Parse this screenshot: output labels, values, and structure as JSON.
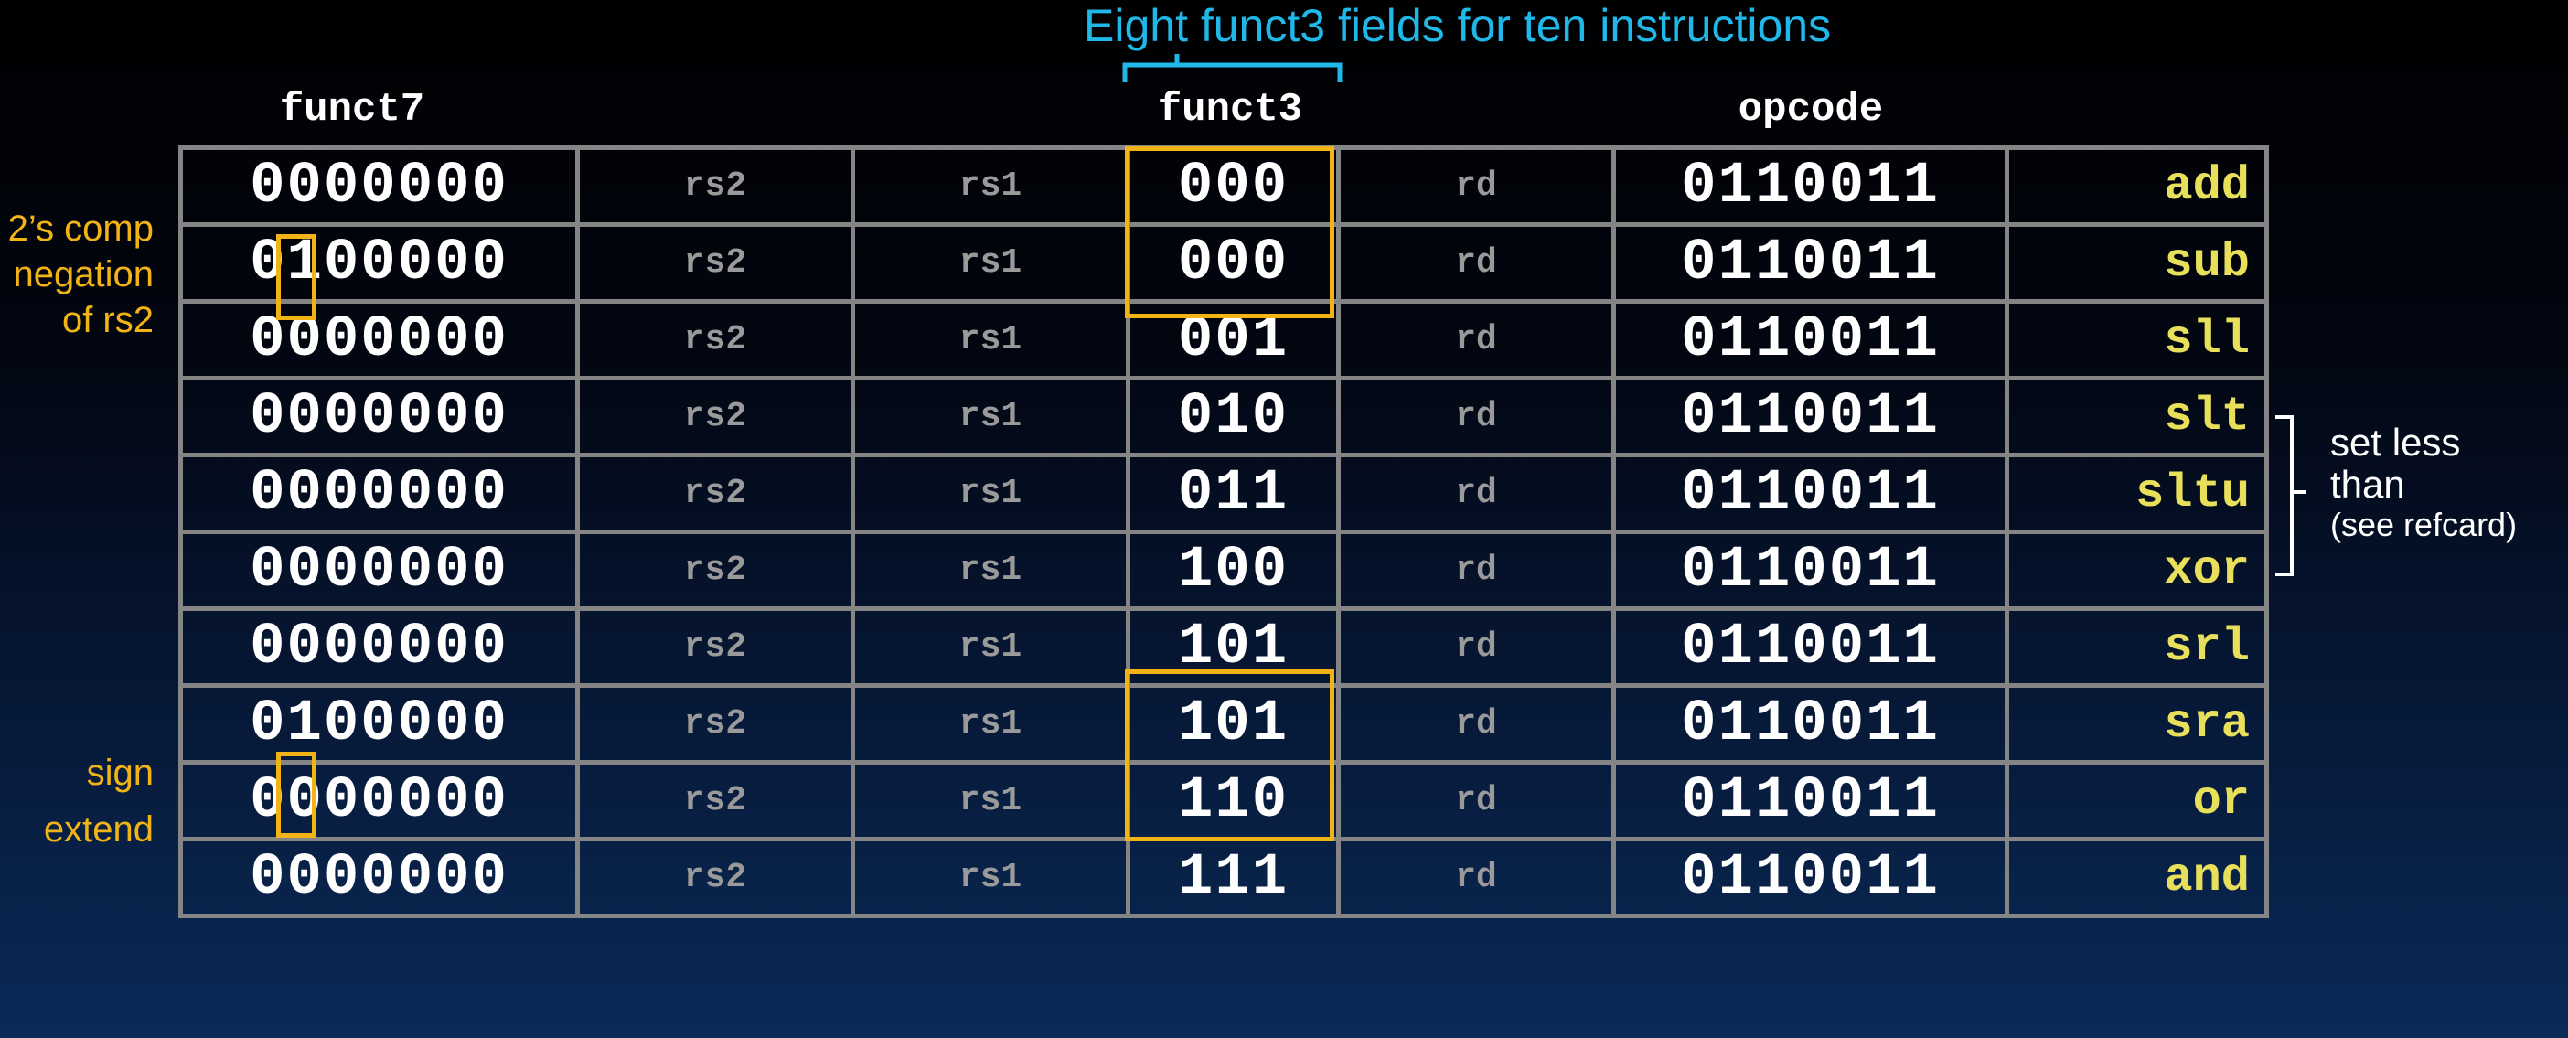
{
  "caption": "Eight funct3 fields for ten instructions",
  "headers": {
    "funct7": "funct7",
    "funct3": "funct3",
    "opcode": "opcode"
  },
  "rows": [
    {
      "funct7": "0000000",
      "rs2": "rs2",
      "rs1": "rs1",
      "funct3": "000",
      "rd": "rd",
      "opcode": "0110011",
      "name": "add"
    },
    {
      "funct7": "0100000",
      "rs2": "rs2",
      "rs1": "rs1",
      "funct3": "000",
      "rd": "rd",
      "opcode": "0110011",
      "name": "sub"
    },
    {
      "funct7": "0000000",
      "rs2": "rs2",
      "rs1": "rs1",
      "funct3": "001",
      "rd": "rd",
      "opcode": "0110011",
      "name": "sll"
    },
    {
      "funct7": "0000000",
      "rs2": "rs2",
      "rs1": "rs1",
      "funct3": "010",
      "rd": "rd",
      "opcode": "0110011",
      "name": "slt"
    },
    {
      "funct7": "0000000",
      "rs2": "rs2",
      "rs1": "rs1",
      "funct3": "011",
      "rd": "rd",
      "opcode": "0110011",
      "name": "sltu"
    },
    {
      "funct7": "0000000",
      "rs2": "rs2",
      "rs1": "rs1",
      "funct3": "100",
      "rd": "rd",
      "opcode": "0110011",
      "name": "xor"
    },
    {
      "funct7": "0000000",
      "rs2": "rs2",
      "rs1": "rs1",
      "funct3": "101",
      "rd": "rd",
      "opcode": "0110011",
      "name": "srl"
    },
    {
      "funct7": "0100000",
      "rs2": "rs2",
      "rs1": "rs1",
      "funct3": "101",
      "rd": "rd",
      "opcode": "0110011",
      "name": "sra"
    },
    {
      "funct7": "0000000",
      "rs2": "rs2",
      "rs1": "rs1",
      "funct3": "110",
      "rd": "rd",
      "opcode": "0110011",
      "name": "or"
    },
    {
      "funct7": "0000000",
      "rs2": "rs2",
      "rs1": "rs1",
      "funct3": "111",
      "rd": "rd",
      "opcode": "0110011",
      "name": "and"
    }
  ],
  "notes": {
    "twos_comp": [
      "2’s comp",
      "negation",
      "of rs2"
    ],
    "sign_extend": [
      "sign",
      "extend"
    ],
    "set_less_than": [
      "set less",
      "than",
      "(see refcard)"
    ]
  },
  "colors": {
    "caption": "#1fb8e8",
    "highlight": "#f2b414",
    "instruction_name": "#e8e05a",
    "grid": "#858585",
    "field_label": "#9a9a9a"
  }
}
